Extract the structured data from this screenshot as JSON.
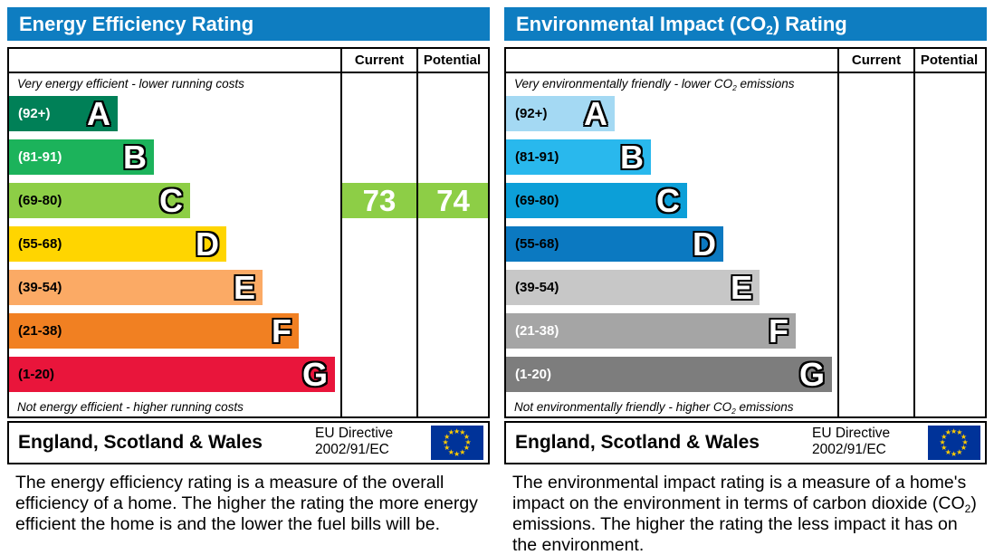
{
  "colors": {
    "header_bg": "#0e7dc1",
    "header_text": "#ffffff",
    "border": "#000000",
    "eu_flag_bg": "#003399",
    "eu_flag_star": "#ffcc00"
  },
  "chart_data": [
    {
      "type": "bar",
      "id": "energy-efficiency",
      "title_parts": {
        "pre": "Energy Efficiency Rating",
        "sub": "",
        "post": ""
      },
      "columns": [
        "Current",
        "Potential"
      ],
      "top_caption_parts": {
        "pre": "Very energy efficient - lower running costs",
        "sub": "",
        "post": ""
      },
      "bottom_caption_parts": {
        "pre": "Not energy efficient - higher running costs",
        "sub": "",
        "post": ""
      },
      "bands": [
        {
          "letter": "A",
          "range_label": "(92+)",
          "range": "92+",
          "color": "#008057",
          "label_color": "#ffffff"
        },
        {
          "letter": "B",
          "range_label": "(81-91)",
          "range": "81-91",
          "color": "#1cb35b",
          "label_color": "#ffffff"
        },
        {
          "letter": "C",
          "range_label": "(69-80)",
          "range": "69-80",
          "color": "#8dce46",
          "label_color": "#000000"
        },
        {
          "letter": "D",
          "range_label": "(55-68)",
          "range": "55-68",
          "color": "#ffd500",
          "label_color": "#000000"
        },
        {
          "letter": "E",
          "range_label": "(39-54)",
          "range": "39-54",
          "color": "#fbaa65",
          "label_color": "#000000"
        },
        {
          "letter": "F",
          "range_label": "(21-38)",
          "range": "21-38",
          "color": "#f18022",
          "label_color": "#000000"
        },
        {
          "letter": "G",
          "range_label": "(1-20)",
          "range": "1-20",
          "color": "#e9153b",
          "label_color": "#000000"
        }
      ],
      "current": {
        "value": "73",
        "band": "C"
      },
      "potential": {
        "value": "74",
        "band": "C"
      },
      "marker_text_color": "#ffffff",
      "footer": {
        "region": "England, Scotland & Wales",
        "directive_line1": "EU Directive",
        "directive_line2": "2002/91/EC"
      },
      "description_parts": {
        "pre": "The energy efficiency rating is a measure of the overall efficiency of a home. The higher the rating the more energy efficient the home is and the lower the fuel bills will be.",
        "sub": "",
        "post": ""
      }
    },
    {
      "type": "bar",
      "id": "environmental-impact",
      "title_parts": {
        "pre": "Environmental Impact (CO",
        "sub": "2",
        "post": ") Rating"
      },
      "columns": [
        "Current",
        "Potential"
      ],
      "top_caption_parts": {
        "pre": "Very environmentally friendly - lower CO",
        "sub": "2",
        "post": " emissions"
      },
      "bottom_caption_parts": {
        "pre": "Not environmentally friendly - higher CO",
        "sub": "2",
        "post": " emissions"
      },
      "bands": [
        {
          "letter": "A",
          "range_label": "(92+)",
          "range": "92+",
          "color": "#a4d9f3",
          "label_color": "#000000"
        },
        {
          "letter": "B",
          "range_label": "(81-91)",
          "range": "81-91",
          "color": "#29b8ed",
          "label_color": "#000000"
        },
        {
          "letter": "C",
          "range_label": "(69-80)",
          "range": "69-80",
          "color": "#0c9fd8",
          "label_color": "#000000"
        },
        {
          "letter": "D",
          "range_label": "(55-68)",
          "range": "55-68",
          "color": "#0b79c1",
          "label_color": "#000000"
        },
        {
          "letter": "E",
          "range_label": "(39-54)",
          "range": "39-54",
          "color": "#c7c7c7",
          "label_color": "#000000"
        },
        {
          "letter": "F",
          "range_label": "(21-38)",
          "range": "21-38",
          "color": "#a5a5a5",
          "label_color": "#ffffff"
        },
        {
          "letter": "G",
          "range_label": "(1-20)",
          "range": "1-20",
          "color": "#7d7d7d",
          "label_color": "#ffffff"
        }
      ],
      "current": null,
      "potential": null,
      "marker_text_color": "#ffffff",
      "footer": {
        "region": "England, Scotland & Wales",
        "directive_line1": "EU Directive",
        "directive_line2": "2002/91/EC"
      },
      "description_parts": {
        "pre": "The environmental impact rating is a measure of a home's impact on the environment in terms of carbon dioxide (CO",
        "sub": "2",
        "post": ") emissions. The higher the rating the less impact it has on the environment."
      }
    }
  ]
}
